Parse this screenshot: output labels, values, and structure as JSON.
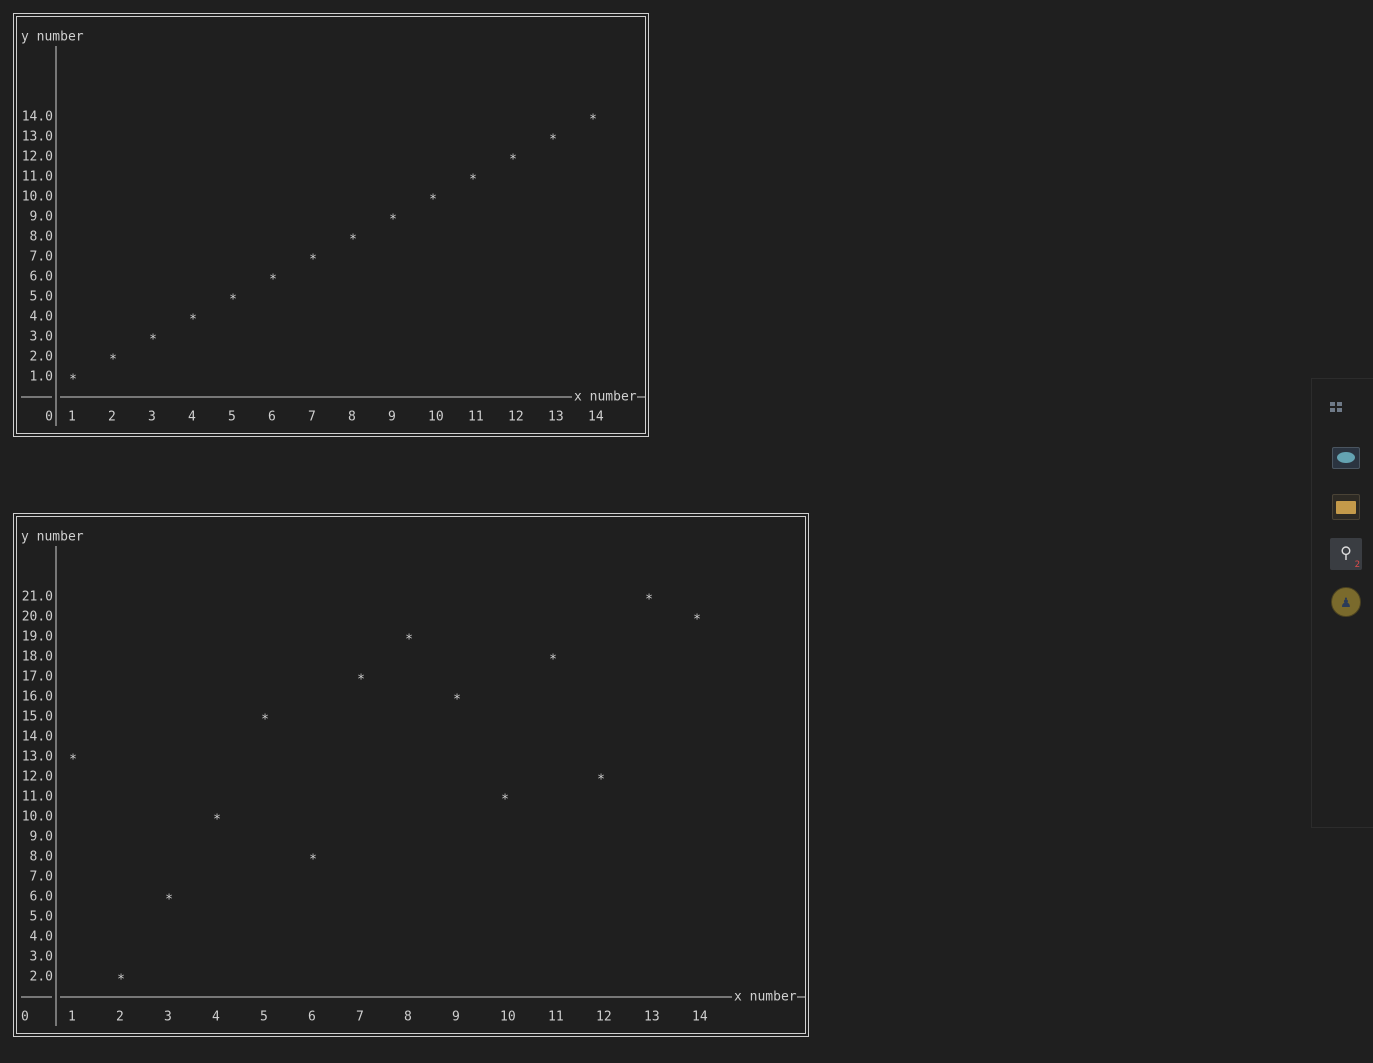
{
  "chart_data": [
    {
      "type": "scatter",
      "ylabel": "y number",
      "xlabel": "x number",
      "marker": "*",
      "x_ticks": [
        "0",
        "1",
        "2",
        "3",
        "4",
        "5",
        "6",
        "7",
        "8",
        "9",
        "10",
        "11",
        "12",
        "13",
        "14"
      ],
      "y_ticks": [
        "1.0",
        "2.0",
        "3.0",
        "4.0",
        "5.0",
        "6.0",
        "7.0",
        "8.0",
        "9.0",
        "10.0",
        "11.0",
        "12.0",
        "13.0",
        "14.0"
      ],
      "x": [
        1,
        2,
        3,
        4,
        5,
        6,
        7,
        8,
        9,
        10,
        11,
        12,
        13,
        14
      ],
      "y": [
        1,
        2,
        3,
        4,
        5,
        6,
        7,
        8,
        9,
        10,
        11,
        12,
        13,
        14
      ],
      "xlim": [
        0,
        14
      ],
      "ylim": [
        0,
        14
      ]
    },
    {
      "type": "scatter",
      "ylabel": "y number",
      "xlabel": "x number",
      "marker": "*",
      "x_ticks": [
        "0",
        "1",
        "2",
        "3",
        "4",
        "5",
        "6",
        "7",
        "8",
        "9",
        "10",
        "11",
        "12",
        "13",
        "14"
      ],
      "y_ticks": [
        "2.0",
        "3.0",
        "4.0",
        "5.0",
        "6.0",
        "7.0",
        "8.0",
        "9.0",
        "10.0",
        "11.0",
        "12.0",
        "13.0",
        "14.0",
        "15.0",
        "16.0",
        "17.0",
        "18.0",
        "19.0",
        "20.0",
        "21.0"
      ],
      "x": [
        1,
        2,
        3,
        4,
        5,
        6,
        7,
        8,
        9,
        10,
        11,
        12,
        13,
        14
      ],
      "y": [
        13,
        2,
        6,
        10,
        15,
        8,
        17,
        19,
        16,
        11,
        18,
        12,
        21,
        20
      ],
      "xlim": [
        0,
        14
      ],
      "ylim": [
        1,
        21
      ]
    }
  ],
  "side_panel": {
    "icons": [
      "grid-icon",
      "screen-icon",
      "folder-icon",
      "search-icon",
      "person-icon"
    ],
    "search_badge": "2"
  }
}
